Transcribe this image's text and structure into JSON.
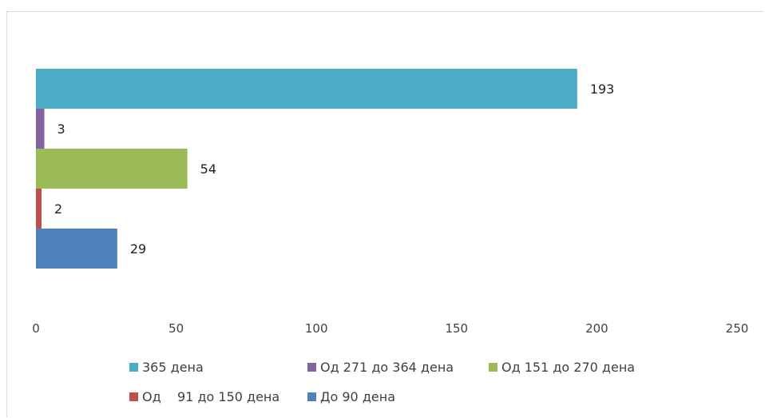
{
  "chart_data": {
    "type": "bar",
    "orientation": "horizontal",
    "xlim": [
      0,
      250
    ],
    "x_ticks": [
      0,
      50,
      100,
      150,
      200,
      250
    ],
    "grid": false,
    "legend_position": "bottom",
    "series": [
      {
        "name": "365 дена",
        "value": 193,
        "color": "#4BACC6"
      },
      {
        "name": "Од 271 до 364 дена",
        "value": 3,
        "color": "#8064A2"
      },
      {
        "name": "Од 151 до 270 дена",
        "value": 54,
        "color": "#9BBB59"
      },
      {
        "name": "Од    91 до 150 дена",
        "value": 2,
        "color": "#C0504D"
      },
      {
        "name": "До 90 дена",
        "value": 29,
        "color": "#4F81BD"
      }
    ]
  }
}
